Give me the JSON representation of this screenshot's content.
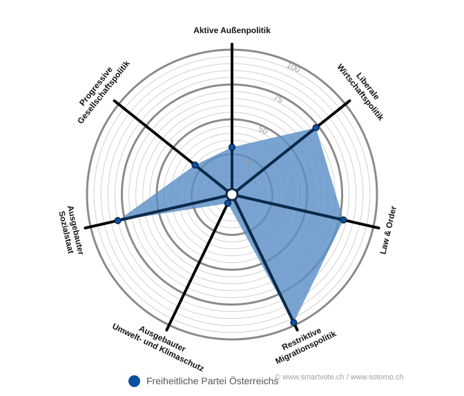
{
  "chart_data": {
    "type": "radar",
    "range": [
      0,
      100
    ],
    "ticks": [
      25,
      50,
      75,
      100
    ],
    "axes": [
      {
        "label_lines": [
          "Aktive Außenpolitik"
        ],
        "value": 30
      },
      {
        "label_lines": [
          "Liberale",
          "Wirtschaftspolitik"
        ],
        "value": 73
      },
      {
        "label_lines": [
          "Law & Order"
        ],
        "value": 78
      },
      {
        "label_lines": [
          "Restriktive",
          "Migrationspolitik"
        ],
        "value": 98
      },
      {
        "label_lines": [
          "Ausgebauter",
          "Umwelt- und Klimaschutz"
        ],
        "value": 3
      },
      {
        "label_lines": [
          "Ausgebauter",
          "Sozialstaat"
        ],
        "value": 80
      },
      {
        "label_lines": [
          "Progressive",
          "Gesellschaftspolitik"
        ],
        "value": 30
      }
    ],
    "series": [
      {
        "name": "Freiheitliche Partei Österreichs",
        "color": "#0a4fa2"
      }
    ],
    "grid": true
  },
  "legend": {
    "label": "Freiheitliche Partei Österreichs"
  },
  "credits": "© www.smartvote.ch / www.sotomo.ch",
  "colors": {
    "fill": "#5b8fc7",
    "marker": "#0a4fa2",
    "spoke_line": "#0b2a4a",
    "grid_major": "#8a8a8a",
    "grid_minor": "#cfcfcf"
  }
}
